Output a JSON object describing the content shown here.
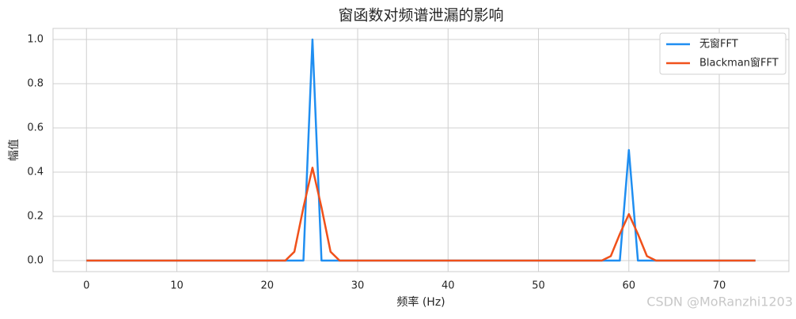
{
  "chart_data": {
    "type": "line",
    "title": "窗函数对频谱泄漏的影响",
    "x_label": "频率 (Hz)",
    "y_label": "幅值",
    "x": [
      0,
      1,
      2,
      3,
      4,
      5,
      6,
      7,
      8,
      9,
      10,
      11,
      12,
      13,
      14,
      15,
      16,
      17,
      18,
      19,
      20,
      21,
      22,
      23,
      24,
      25,
      26,
      27,
      28,
      29,
      30,
      31,
      32,
      33,
      34,
      35,
      36,
      37,
      38,
      39,
      40,
      41,
      42,
      43,
      44,
      45,
      46,
      47,
      48,
      49,
      50,
      51,
      52,
      53,
      54,
      55,
      56,
      57,
      58,
      59,
      60,
      61,
      62,
      63,
      64,
      65,
      66,
      67,
      68,
      69,
      70,
      71,
      72,
      73,
      74
    ],
    "series": [
      {
        "name": "无窗FFT",
        "color": "#1f8ef1",
        "values": [
          0,
          0,
          0,
          0,
          0,
          0,
          0,
          0,
          0,
          0,
          0,
          0,
          0,
          0,
          0,
          0,
          0,
          0,
          0,
          0,
          0,
          0,
          0,
          0,
          0,
          1,
          0,
          0,
          0,
          0,
          0,
          0,
          0,
          0,
          0,
          0,
          0,
          0,
          0,
          0,
          0,
          0,
          0,
          0,
          0,
          0,
          0,
          0,
          0,
          0,
          0,
          0,
          0,
          0,
          0,
          0,
          0,
          0,
          0,
          0,
          0.5,
          0,
          0,
          0,
          0,
          0,
          0,
          0,
          0,
          0,
          0,
          0,
          0,
          0,
          0
        ]
      },
      {
        "name": "Blackman窗FFT",
        "color": "#f0511b",
        "values": [
          0,
          0,
          0,
          0,
          0,
          0,
          0,
          0,
          0,
          0,
          0,
          0,
          0,
          0,
          0,
          0,
          0,
          0,
          0,
          0,
          0,
          0,
          0,
          0.04,
          0.24,
          0.42,
          0.24,
          0.04,
          0,
          0,
          0,
          0,
          0,
          0,
          0,
          0,
          0,
          0,
          0,
          0,
          0,
          0,
          0,
          0,
          0,
          0,
          0,
          0,
          0,
          0,
          0,
          0,
          0,
          0,
          0,
          0,
          0,
          0,
          0.02,
          0.12,
          0.21,
          0.12,
          0.02,
          0,
          0,
          0,
          0,
          0,
          0,
          0,
          0,
          0,
          0,
          0,
          0
        ]
      }
    ],
    "xlim": [
      -3.7,
      77.7
    ],
    "ylim": [
      -0.05,
      1.05
    ],
    "xticks": [
      0,
      10,
      20,
      30,
      40,
      50,
      60,
      70
    ],
    "yticks": [
      {
        "value": 0,
        "label": "0.0"
      },
      {
        "value": 0.2,
        "label": "0.2"
      },
      {
        "value": 0.4,
        "label": "0.4"
      },
      {
        "value": 0.6,
        "label": "0.6"
      },
      {
        "value": 0.8,
        "label": "0.8"
      },
      {
        "value": 1,
        "label": "1.0"
      }
    ],
    "grid": true,
    "legend": "upper right",
    "watermark": "CSDN @MoRanzhi1203"
  }
}
